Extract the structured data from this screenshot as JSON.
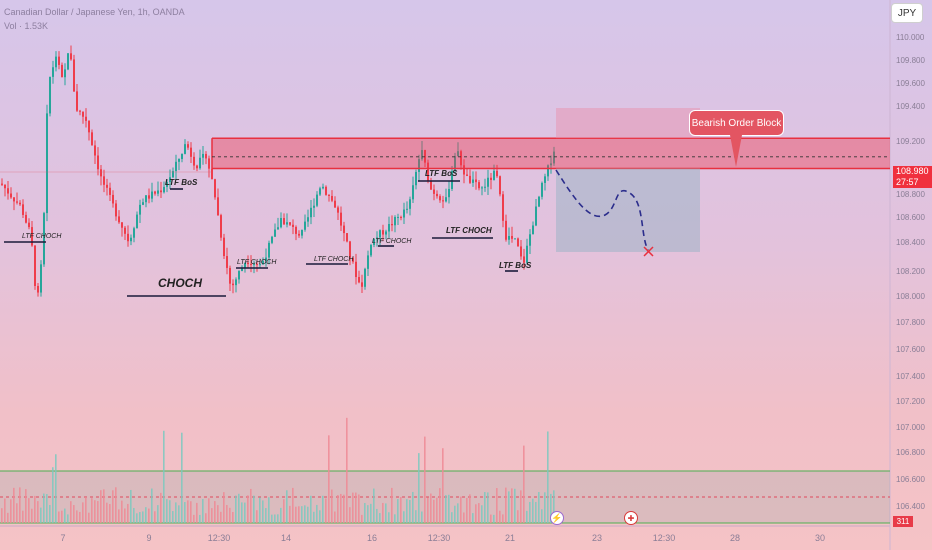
{
  "header": {
    "symbol_line": "Canadian Dollar / Japanese Yen, 1h, OANDA",
    "vol_line": "Vol · 1.53K"
  },
  "currency_button": "JPY",
  "price_axis": [
    "110.000",
    "109.800",
    "109.600",
    "109.400",
    "109.200",
    "108.800",
    "108.600",
    "108.400",
    "108.200",
    "108.000",
    "107.800",
    "107.600",
    "107.400",
    "107.200",
    "107.000",
    "106.800",
    "106.600",
    "106.400"
  ],
  "time_axis": [
    "7",
    "9",
    "12:30",
    "14",
    "16",
    "12:30",
    "21",
    "23",
    "12:30",
    "28",
    "30"
  ],
  "price_tag": {
    "price": "108.980",
    "countdown": "27:57"
  },
  "volume_tag": "311",
  "callout": "Bearish Order Block",
  "annotations": {
    "choch": "CHOCH",
    "ltf_choch_left": "LTF CHOCH",
    "ltf_bos_1": "LTF BoS",
    "ltf_choch_2": "LTF CHOCH",
    "ltf_choch_3": "LTF CHOCH",
    "ltf_choch_4": "LTF CHOCH",
    "ltf_bos_top": "LTF BoS",
    "ltf_choch_mid": "LTF CHOCH",
    "ltf_bos_right": "LTF BoS"
  },
  "events": {
    "flash_icon": "lightning-icon",
    "flag_icon": "canada-flag-icon"
  },
  "colors": {
    "bull": "#26a69a",
    "bear": "#ef3d4b",
    "zone_fill": "#f0364a",
    "target_box": "#9fb4c7",
    "callout": "#e35562"
  },
  "chart_data": {
    "type": "candlestick",
    "title": "Canadian Dollar / Japanese Yen, 1h, OANDA",
    "y_range": [
      106.3,
      110.1
    ],
    "x_labels": [
      "7",
      "9",
      "12:30",
      "14",
      "16",
      "12:30",
      "21",
      "23",
      "12:30",
      "28",
      "30"
    ],
    "key_path": [
      {
        "t": "7",
        "price": 107.7
      },
      {
        "t": "7",
        "price": 109.87
      },
      {
        "t": "9",
        "price": 108.22
      },
      {
        "t": "9",
        "price": 109.1
      },
      {
        "t": "12:30",
        "price": 107.8
      },
      {
        "t": "14",
        "price": 108.75
      },
      {
        "t": "16",
        "price": 107.85
      },
      {
        "t": "12:30",
        "price": 109.05
      },
      {
        "t": "21",
        "price": 108.1
      },
      {
        "t": "21",
        "price": 109.12
      }
    ],
    "order_block": {
      "top": 109.14,
      "bottom": 108.88
    },
    "projection": [
      109.1,
      108.93,
      108.73,
      108.92,
      108.45
    ],
    "current_price": 108.98,
    "volume_threshold": 311
  }
}
